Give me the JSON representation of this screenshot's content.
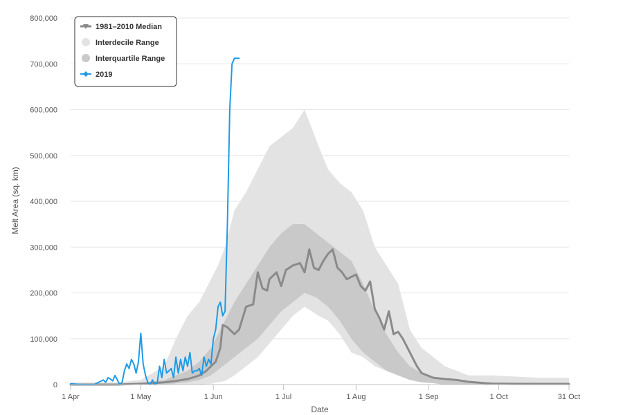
{
  "chart_data": {
    "type": "area",
    "title": "",
    "xlabel": "Date",
    "ylabel": "Melt Area (sq. km)",
    "x_start": "1 Apr",
    "x_range_days": [
      0,
      213
    ],
    "ylim": [
      0,
      800000
    ],
    "y_ticks": [
      0,
      100000,
      200000,
      300000,
      400000,
      500000,
      600000,
      700000,
      800000
    ],
    "y_tick_labels": [
      "0",
      "100,000",
      "200,000",
      "300,000",
      "400,000",
      "500,000",
      "600,000",
      "700,000",
      "800,000"
    ],
    "x_ticks": [
      {
        "day": 0,
        "label": "1 Apr"
      },
      {
        "day": 30,
        "label": "1 May"
      },
      {
        "day": 61,
        "label": "1 Jun"
      },
      {
        "day": 91,
        "label": "1 Jul"
      },
      {
        "day": 122,
        "label": "1 Aug"
      },
      {
        "day": 153,
        "label": "1 Sep"
      },
      {
        "day": 183,
        "label": "1 Oct"
      },
      {
        "day": 213,
        "label": "31 Oct"
      }
    ],
    "grid": "horizontal",
    "legend": {
      "position": "top-left",
      "entries": [
        {
          "name": "1981–2010 Median",
          "color": "#888888",
          "marker": "triangle-line"
        },
        {
          "name": "Interdecile Range",
          "color": "#e3e3e3",
          "marker": "circle"
        },
        {
          "name": "Interquartile Range",
          "color": "#c9c9c9",
          "marker": "circle"
        },
        {
          "name": "2019",
          "color": "#1e9be6",
          "marker": "diamond-line"
        }
      ]
    },
    "series": [
      {
        "name": "Interdecile Range",
        "kind": "band",
        "color": "#e3e3e3",
        "x": [
          0,
          20,
          30,
          40,
          45,
          50,
          55,
          60,
          63,
          66,
          70,
          75,
          80,
          85,
          90,
          95,
          100,
          103,
          106,
          110,
          115,
          120,
          125,
          130,
          135,
          140,
          145,
          150,
          155,
          160,
          165,
          170,
          180,
          200,
          213
        ],
        "low": [
          0,
          0,
          0,
          0,
          0,
          0,
          0,
          2000,
          5000,
          8000,
          20000,
          40000,
          60000,
          90000,
          120000,
          150000,
          170000,
          160000,
          150000,
          140000,
          110000,
          70000,
          60000,
          40000,
          30000,
          20000,
          10000,
          5000,
          3000,
          0,
          0,
          0,
          0,
          0,
          0
        ],
        "high": [
          5000,
          5000,
          10000,
          40000,
          100000,
          150000,
          180000,
          230000,
          260000,
          300000,
          380000,
          420000,
          470000,
          520000,
          540000,
          560000,
          600000,
          560000,
          520000,
          470000,
          440000,
          420000,
          380000,
          300000,
          260000,
          220000,
          120000,
          80000,
          60000,
          40000,
          30000,
          20000,
          20000,
          15000,
          15000
        ]
      },
      {
        "name": "Interquartile Range",
        "kind": "band",
        "color": "#c9c9c9",
        "x": [
          0,
          30,
          40,
          50,
          55,
          60,
          65,
          70,
          75,
          80,
          85,
          90,
          95,
          100,
          105,
          110,
          115,
          120,
          125,
          130,
          135,
          140,
          145,
          150,
          155,
          160,
          170,
          180,
          213
        ],
        "low": [
          0,
          0,
          0,
          5000,
          10000,
          20000,
          40000,
          60000,
          80000,
          100000,
          130000,
          160000,
          180000,
          200000,
          190000,
          170000,
          140000,
          100000,
          70000,
          50000,
          30000,
          20000,
          10000,
          5000,
          3000,
          0,
          0,
          0,
          0
        ],
        "high": [
          0,
          3000,
          10000,
          30000,
          50000,
          80000,
          130000,
          180000,
          220000,
          260000,
          300000,
          330000,
          350000,
          350000,
          330000,
          310000,
          290000,
          270000,
          220000,
          160000,
          110000,
          70000,
          40000,
          25000,
          15000,
          10000,
          5000,
          5000,
          5000
        ]
      },
      {
        "name": "1981–2010 Median",
        "kind": "line",
        "color": "#8a8a8a",
        "x": [
          0,
          20,
          30,
          35,
          40,
          45,
          50,
          52,
          55,
          58,
          60,
          62,
          64,
          65,
          67,
          70,
          72,
          75,
          78,
          80,
          82,
          84,
          85,
          88,
          90,
          92,
          95,
          98,
          100,
          102,
          104,
          106,
          108,
          110,
          112,
          114,
          116,
          118,
          120,
          122,
          124,
          126,
          128,
          130,
          132,
          134,
          136,
          138,
          140,
          142,
          145,
          148,
          150,
          155,
          160,
          165,
          170,
          180,
          190,
          213
        ],
        "y": [
          0,
          0,
          2000,
          3000,
          5000,
          8000,
          12000,
          15000,
          20000,
          30000,
          40000,
          50000,
          80000,
          130000,
          125000,
          110000,
          120000,
          170000,
          175000,
          245000,
          210000,
          205000,
          230000,
          245000,
          215000,
          250000,
          260000,
          265000,
          245000,
          295000,
          255000,
          250000,
          270000,
          285000,
          295000,
          255000,
          245000,
          230000,
          235000,
          240000,
          215000,
          205000,
          225000,
          165000,
          145000,
          120000,
          160000,
          110000,
          115000,
          100000,
          70000,
          40000,
          25000,
          15000,
          12000,
          10000,
          6000,
          2000,
          1000,
          1000
        ]
      },
      {
        "name": "2019",
        "kind": "line",
        "color": "#1e9be6",
        "x": [
          0,
          5,
          10,
          14,
          15,
          16,
          17,
          18,
          19,
          20,
          21,
          22,
          23,
          24,
          25,
          26,
          27,
          28,
          29,
          30,
          31,
          32,
          33,
          34,
          35,
          36,
          37,
          38,
          39,
          40,
          41,
          42,
          43,
          44,
          45,
          46,
          47,
          48,
          49,
          50,
          51,
          52,
          53,
          54,
          55,
          56,
          57,
          58,
          59,
          60,
          61,
          62,
          63,
          64,
          65,
          66,
          67,
          68,
          69,
          70,
          71,
          71.5,
          72
        ],
        "y": [
          2000,
          0,
          0,
          10000,
          5000,
          15000,
          12000,
          8000,
          20000,
          10000,
          0,
          5000,
          30000,
          45000,
          35000,
          55000,
          45000,
          25000,
          50000,
          112000,
          45000,
          20000,
          5000,
          0,
          10000,
          0,
          3000,
          40000,
          15000,
          55000,
          25000,
          30000,
          35000,
          15000,
          60000,
          25000,
          55000,
          30000,
          60000,
          40000,
          70000,
          25000,
          30000,
          30000,
          35000,
          20000,
          60000,
          40000,
          55000,
          45000,
          100000,
          120000,
          170000,
          180000,
          150000,
          160000,
          350000,
          600000,
          700000,
          712000,
          712000,
          712000,
          712000
        ]
      }
    ]
  }
}
